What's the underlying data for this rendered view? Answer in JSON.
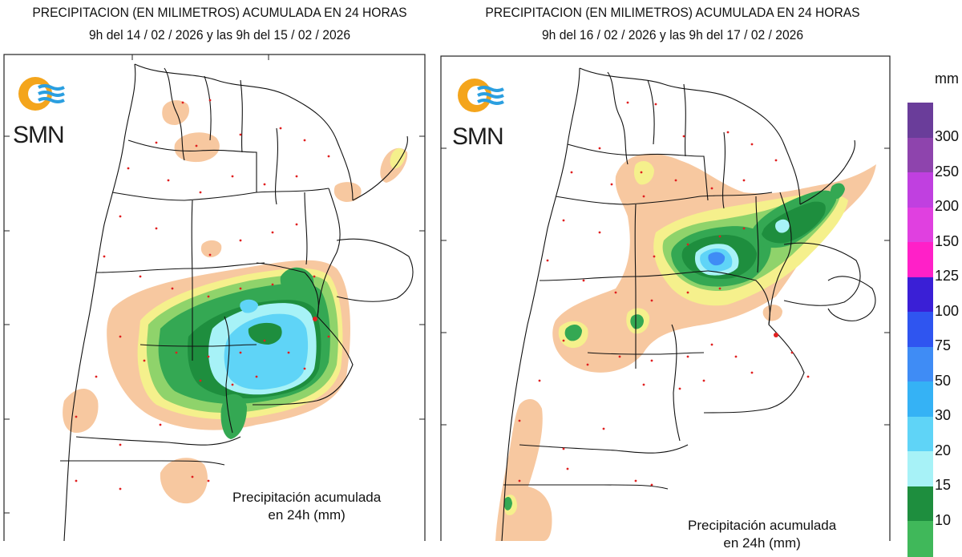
{
  "maps": [
    {
      "title": "PRECIPITACION (EN MILIMETROS) ACUMULADA EN 24 HORAS",
      "subtitle": "9h del 14 / 02 / 2026  y las 9h del 15 / 02 / 2026",
      "logo": "SMN",
      "caption_line1": "Precipitación acumulada",
      "caption_line2": "en 24h (mm)"
    },
    {
      "title": "PRECIPITACION (EN MILIMETROS) ACUMULADA EN 24 HORAS",
      "subtitle": "9h del 16 / 02 / 2026  y las 9h del 17 / 02 / 2026",
      "logo": "SMN",
      "caption_line1": "Precipitación acumulada",
      "caption_line2": "en 24h (mm)"
    }
  ],
  "legend": {
    "unit": "mm",
    "levels": [
      {
        "label": "300",
        "color": "#6a3d9a"
      },
      {
        "label": "250",
        "color": "#8e44ad"
      },
      {
        "label": "200",
        "color": "#c040e0"
      },
      {
        "label": "150",
        "color": "#e040e0"
      },
      {
        "label": "125",
        "color": "#ff20c8"
      },
      {
        "label": "100",
        "color": "#3a1fd6"
      },
      {
        "label": "75",
        "color": "#2f55f0"
      },
      {
        "label": "50",
        "color": "#3f8cf5"
      },
      {
        "label": "30",
        "color": "#35b2f5"
      },
      {
        "label": "20",
        "color": "#5fd4f7"
      },
      {
        "label": "15",
        "color": "#a7f2f7"
      },
      {
        "label": "10",
        "color": "#1e8e3e"
      },
      {
        "label": "",
        "color": "#40b85a"
      }
    ]
  },
  "colors": {
    "light_rain": "#f7c8a0",
    "yellow": "#f5f08c",
    "green_light": "#8fd36b",
    "green": "#34a853",
    "green_dark": "#1e8e3e",
    "cyan_light": "#a7f2f7",
    "cyan": "#5fd4f7",
    "blue": "#3f8cf5",
    "logo_orange": "#f4a51c",
    "logo_blue": "#2b9fe0"
  }
}
